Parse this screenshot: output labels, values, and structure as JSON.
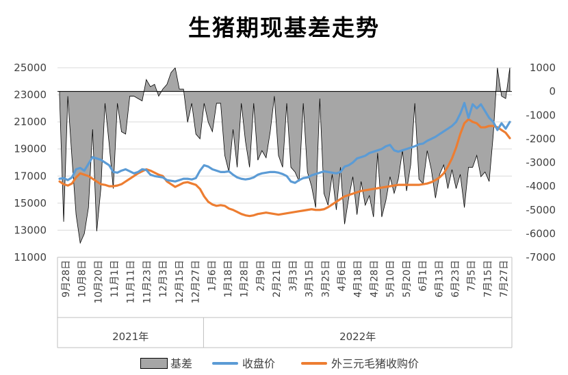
{
  "chart_data": {
    "type": "line",
    "title": "生猪期现基差走势",
    "colors": {
      "basis_fill": "#a6a6a6",
      "basis_stroke": "#000000",
      "close": "#5b9bd5",
      "spot": "#ed7d31",
      "grid": "#d9d9d9",
      "axis": "#bfbfbf"
    },
    "y_left": {
      "ylim": [
        11000,
        25000
      ],
      "ticks": [
        "25000",
        "23000",
        "21000",
        "19000",
        "17000",
        "15000",
        "13000",
        "11000"
      ]
    },
    "y_right": {
      "ylim": [
        -7000,
        1000
      ],
      "ticks": [
        "1000",
        "0",
        "-1000",
        "-2000",
        "-3000",
        "-4000",
        "-5000",
        "-6000",
        "-7000"
      ]
    },
    "x_tick_labels": [
      "9月28日",
      "10月8日",
      "10月20日",
      "11月1日",
      "11月11日",
      "11月23日",
      "12月3日",
      "12月15日",
      "12月27日",
      "1月6日",
      "1月18日",
      "1月28日",
      "2月9日",
      "2月21日",
      "3月3日",
      "3月15日",
      "3月25日",
      "4月6日",
      "4月18日",
      "4月28日",
      "5月10日",
      "5月20日",
      "6月1日",
      "6月13日",
      "6月23日",
      "7月5日",
      "7月15日",
      "7月27日"
    ],
    "year_groups": [
      {
        "label": "2021年",
        "start": 0,
        "end": 9
      },
      {
        "label": "2022年",
        "start": 9,
        "end": 28
      }
    ],
    "series_close": {
      "name": "收盘价",
      "values": [
        16800,
        16850,
        16700,
        16900,
        17500,
        17600,
        17400,
        17900,
        18400,
        18300,
        18200,
        18000,
        17800,
        17300,
        17250,
        17400,
        17500,
        17350,
        17200,
        17300,
        17500,
        17450,
        17100,
        17000,
        16950,
        16900,
        16700,
        16650,
        16600,
        16700,
        16800,
        16800,
        16750,
        16850,
        17400,
        17800,
        17700,
        17500,
        17400,
        17300,
        17300,
        17350,
        17100,
        16900,
        16800,
        16750,
        16800,
        16900,
        17100,
        17200,
        17250,
        17300,
        17300,
        17250,
        17150,
        17000,
        16600,
        16500,
        16700,
        16850,
        16900,
        17050,
        17150,
        17250,
        17350,
        17300,
        17250,
        17200,
        17300,
        17700,
        17800,
        18000,
        18300,
        18400,
        18500,
        18700,
        18800,
        18900,
        19000,
        19200,
        19300,
        18900,
        18800,
        18900,
        19000,
        19100,
        19200,
        19350,
        19400,
        19600,
        19750,
        19900,
        20100,
        20300,
        20500,
        20700,
        21000,
        21600,
        22400,
        21300,
        22300,
        22000,
        22300,
        21800,
        21300,
        21000,
        20400,
        20900,
        20500,
        21000
      ]
    },
    "series_spot": {
      "name": "外三元毛猪收购价",
      "values": [
        16600,
        16400,
        16300,
        16450,
        16900,
        17200,
        17100,
        17000,
        16800,
        16600,
        16400,
        16350,
        16250,
        16250,
        16300,
        16400,
        16600,
        16800,
        17000,
        17200,
        17350,
        17500,
        17400,
        17250,
        17100,
        17000,
        16600,
        16400,
        16200,
        16350,
        16500,
        16550,
        16450,
        16350,
        16050,
        15500,
        15100,
        14900,
        14800,
        14850,
        14800,
        14600,
        14500,
        14350,
        14200,
        14100,
        14050,
        14100,
        14200,
        14250,
        14300,
        14250,
        14200,
        14150,
        14200,
        14250,
        14300,
        14350,
        14400,
        14450,
        14500,
        14550,
        14500,
        14500,
        14550,
        14700,
        14900,
        15100,
        15300,
        15500,
        15600,
        15700,
        15800,
        15900,
        15950,
        16000,
        16050,
        16100,
        16150,
        16200,
        16250,
        16300,
        16350,
        16350,
        16350,
        16350,
        16350,
        16350,
        16400,
        16450,
        16550,
        16700,
        16900,
        17200,
        17700,
        18300,
        19100,
        20100,
        20900,
        21200,
        21000,
        20900,
        20600,
        20600,
        20700,
        20700,
        20600,
        20400,
        20200,
        19800
      ]
    },
    "series_basis": {
      "name": "基差",
      "values": [
        -200,
        -5500,
        -200,
        -2800,
        -5200,
        -6400,
        -6000,
        -4900,
        -1600,
        -5900,
        -4100,
        -500,
        -2200,
        -4100,
        -500,
        -1700,
        -1800,
        -200,
        -200,
        -300,
        -400,
        500,
        200,
        300,
        -200,
        100,
        300,
        800,
        1000,
        100,
        100,
        -1300,
        -500,
        -1800,
        -2000,
        -500,
        -1300,
        -1700,
        -500,
        -500,
        -2700,
        -3400,
        -1600,
        -3200,
        -500,
        -2100,
        -3200,
        -500,
        -2900,
        -2500,
        -2800,
        -1700,
        -200,
        -2700,
        -3200,
        -500,
        -3200,
        -3400,
        -3800,
        -500,
        -3400,
        -4000,
        -4900,
        -300,
        -4300,
        -4800,
        -3500,
        -5000,
        -3200,
        -5600,
        -4500,
        -3600,
        -5200,
        -3800,
        -4800,
        -4400,
        -5300,
        -2600,
        -5300,
        -4600,
        -3600,
        -4300,
        -3700,
        -2500,
        -4200,
        -3100,
        -500,
        -3700,
        -3900,
        -2500,
        -3300,
        -4500,
        -3500,
        -3100,
        -4100,
        -3300,
        -4100,
        -3500,
        -4900,
        -3200,
        -3200,
        -2700,
        -3600,
        -3400,
        -3800,
        -1800,
        1000,
        -200,
        -300,
        1000
      ]
    },
    "legend": [
      "基差",
      "收盘价",
      "外三元毛猪收购价"
    ]
  }
}
